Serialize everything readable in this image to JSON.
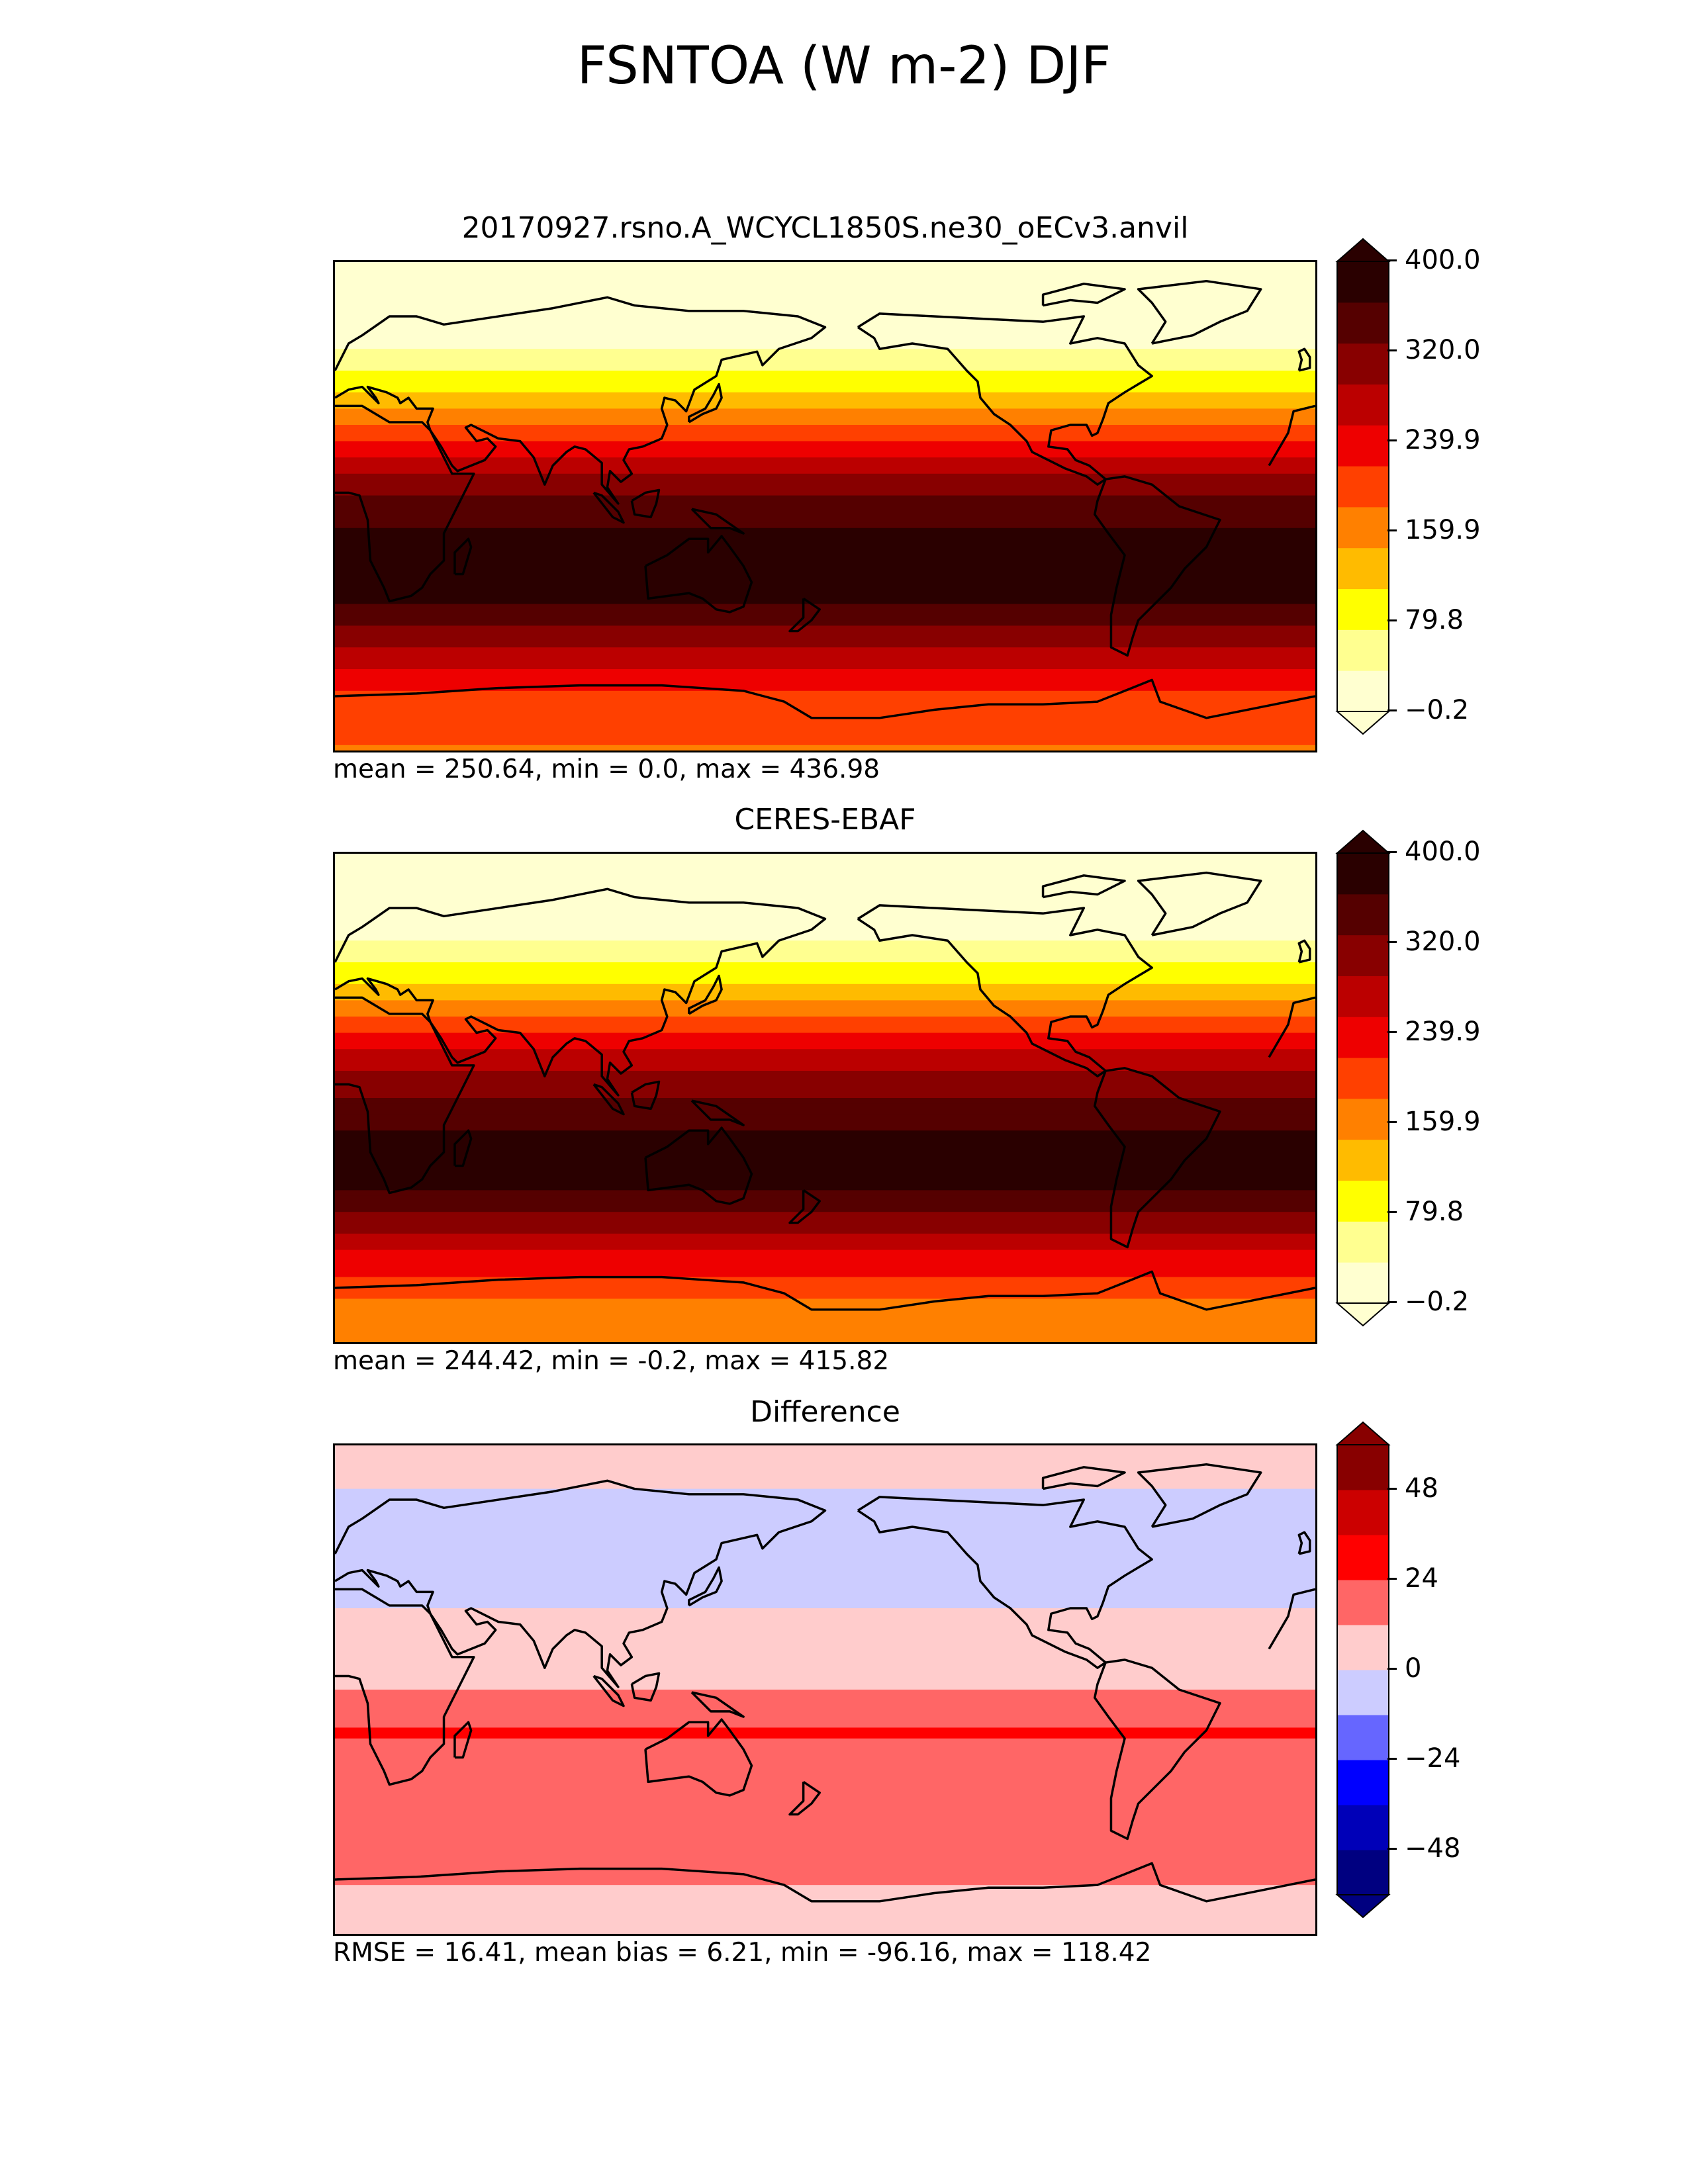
{
  "title": "FSNTOA (W m-2) DJF",
  "colors": {
    "heat": [
      "#ffffd0",
      "#ffff90",
      "#ffff00",
      "#ffbb00",
      "#ff8000",
      "#ff4000",
      "#ee0000",
      "#bb0000",
      "#880000",
      "#550000",
      "#2a0000"
    ],
    "diff": [
      "#000080",
      "#0000b8",
      "#0000ff",
      "#6666ff",
      "#ccccff",
      "#ffcccc",
      "#ff6666",
      "#ff0000",
      "#cc0000",
      "#880000"
    ],
    "coastline": "#000000"
  },
  "panels": [
    {
      "title": "20170927.rsno.A_WCYCL1850S.ne30_oECv3.anvil",
      "stats": "mean = 250.64, min = 0.0, max = 436.98",
      "colorbar_ticks": [
        "400.0",
        "320.0",
        "239.9",
        "159.9",
        "79.8",
        "−0.2"
      ]
    },
    {
      "title": "CERES-EBAF",
      "stats": "mean = 244.42, min = -0.2, max = 415.82",
      "colorbar_ticks": [
        "400.0",
        "320.0",
        "239.9",
        "159.9",
        "79.8",
        "−0.2"
      ]
    },
    {
      "title": "Difference",
      "stats": "RMSE = 16.41, mean bias = 6.21, min = -96.16, max = 118.42",
      "colorbar_ticks": [
        "48",
        "24",
        "0",
        "−24",
        "−48"
      ]
    }
  ],
  "chart_data": [
    {
      "type": "heatmap",
      "title": "20170927.rsno.A_WCYCL1850S.ne30_oECv3.anvil",
      "variable": "FSNTOA (W m-2) DJF",
      "stats": {
        "mean": 250.64,
        "min": 0.0,
        "max": 436.98
      },
      "colorbar": {
        "ticks": [
          400.0,
          320.0,
          239.9,
          159.9,
          79.8,
          -0.2
        ],
        "extend": "both"
      },
      "map_extent": {
        "lon": [
          0,
          360
        ],
        "lat": [
          -90,
          90
        ]
      },
      "zonal_profile": {
        "lat": [
          90,
          75,
          60,
          45,
          30,
          15,
          0,
          -15,
          -30,
          -45,
          -60,
          -75,
          -90
        ],
        "value": [
          0,
          0,
          30,
          90,
          180,
          280,
          340,
          390,
          400,
          320,
          250,
          190,
          180
        ]
      }
    },
    {
      "type": "heatmap",
      "title": "CERES-EBAF",
      "variable": "FSNTOA (W m-2) DJF",
      "stats": {
        "mean": 244.42,
        "min": -0.2,
        "max": 415.82
      },
      "colorbar": {
        "ticks": [
          400.0,
          320.0,
          239.9,
          159.9,
          79.8,
          -0.2
        ],
        "extend": "both"
      },
      "map_extent": {
        "lon": [
          0,
          360
        ],
        "lat": [
          -90,
          90
        ]
      },
      "zonal_profile": {
        "lat": [
          90,
          75,
          60,
          45,
          30,
          15,
          0,
          -15,
          -30,
          -45,
          -60,
          -75,
          -90
        ],
        "value": [
          0,
          0,
          30,
          90,
          180,
          270,
          330,
          370,
          380,
          310,
          240,
          180,
          175
        ]
      }
    },
    {
      "type": "heatmap",
      "title": "Difference",
      "variable": "FSNTOA (W m-2) DJF",
      "stats": {
        "rmse": 16.41,
        "mean_bias": 6.21,
        "min": -96.16,
        "max": 118.42
      },
      "colorbar": {
        "ticks": [
          48,
          24,
          0,
          -24,
          -48
        ],
        "extend": "both"
      },
      "map_extent": {
        "lon": [
          0,
          360
        ],
        "lat": [
          -90,
          90
        ]
      },
      "zonal_profile": {
        "lat": [
          90,
          75,
          60,
          45,
          30,
          15,
          0,
          -15,
          -30,
          -45,
          -60,
          -75,
          -90
        ],
        "value": [
          2,
          0,
          -5,
          -5,
          0,
          8,
          12,
          25,
          20,
          12,
          24,
          8,
          4
        ]
      }
    }
  ]
}
